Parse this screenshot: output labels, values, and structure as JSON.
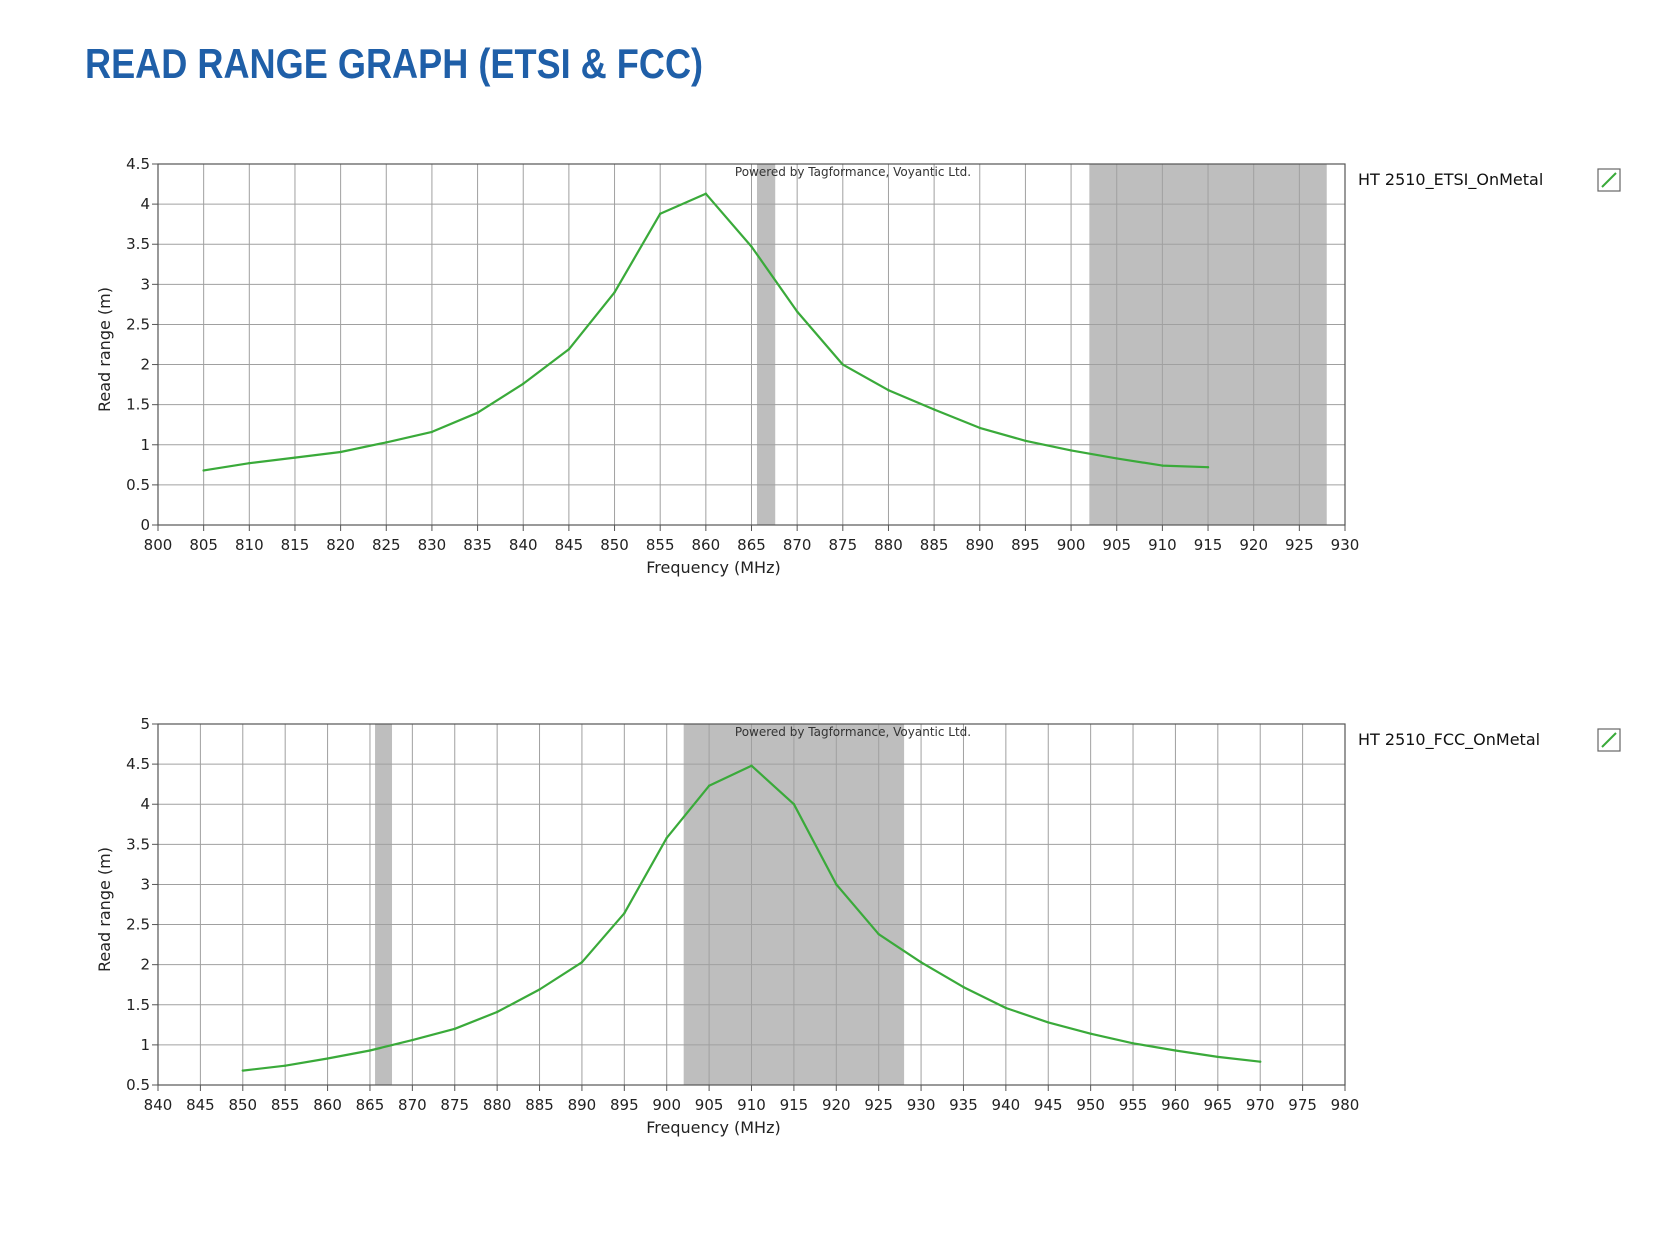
{
  "title": "READ RANGE GRAPH (ETSI & FCC)",
  "colors": {
    "title": "#1f5fa8",
    "series": "#3aaa3a",
    "band": "#bebebe",
    "grid": "#a0a0a0",
    "axis": "#555555"
  },
  "chart_data": [
    {
      "type": "line",
      "watermark": "Powered by Tagformance, Voyantic Ltd.",
      "xlabel": "Frequency (MHz)",
      "ylabel": "Read range (m)",
      "xlim": [
        800,
        930
      ],
      "ylim": [
        0,
        4.5
      ],
      "x_ticks": [
        800,
        805,
        810,
        815,
        820,
        825,
        830,
        835,
        840,
        845,
        850,
        855,
        860,
        865,
        870,
        875,
        880,
        885,
        890,
        895,
        900,
        905,
        910,
        915,
        920,
        925,
        930
      ],
      "y_ticks": [
        0,
        0.5,
        1,
        1.5,
        2,
        2.5,
        3,
        3.5,
        4,
        4.5
      ],
      "grid": true,
      "legend_position": "right",
      "shaded_bands": [
        [
          865.6,
          867.6
        ],
        [
          902,
          928
        ]
      ],
      "series": [
        {
          "name": "HT 2510_ETSI_OnMetal",
          "x": [
            805,
            810,
            815,
            820,
            825,
            830,
            835,
            840,
            845,
            850,
            855,
            860,
            865,
            870,
            875,
            880,
            885,
            890,
            895,
            900,
            905,
            910,
            915
          ],
          "y": [
            0.68,
            0.77,
            0.84,
            0.91,
            1.03,
            1.16,
            1.4,
            1.76,
            2.19,
            2.9,
            3.88,
            4.13,
            3.47,
            2.66,
            2.0,
            1.68,
            1.44,
            1.21,
            1.05,
            0.93,
            0.83,
            0.74,
            0.72
          ]
        }
      ]
    },
    {
      "type": "line",
      "watermark": "Powered by Tagformance, Voyantic Ltd.",
      "xlabel": "Frequency (MHz)",
      "ylabel": "Read range (m)",
      "xlim": [
        840,
        980
      ],
      "ylim": [
        0.5,
        5
      ],
      "x_ticks": [
        840,
        845,
        850,
        855,
        860,
        865,
        870,
        875,
        880,
        885,
        890,
        895,
        900,
        905,
        910,
        915,
        920,
        925,
        930,
        935,
        940,
        945,
        950,
        955,
        960,
        965,
        970,
        975,
        980
      ],
      "y_ticks": [
        0.5,
        1,
        1.5,
        2,
        2.5,
        3,
        3.5,
        4,
        4.5,
        5
      ],
      "grid": true,
      "legend_position": "right",
      "shaded_bands": [
        [
          865.6,
          867.6
        ],
        [
          902,
          928
        ]
      ],
      "series": [
        {
          "name": "HT 2510_FCC_OnMetal",
          "x": [
            850,
            855,
            860,
            865,
            870,
            875,
            880,
            885,
            890,
            895,
            900,
            905,
            910,
            915,
            920,
            925,
            930,
            935,
            940,
            945,
            950,
            955,
            960,
            965,
            970
          ],
          "y": [
            0.68,
            0.74,
            0.83,
            0.93,
            1.06,
            1.2,
            1.41,
            1.69,
            2.03,
            2.64,
            3.58,
            4.23,
            4.48,
            4.0,
            3.0,
            2.38,
            2.03,
            1.72,
            1.46,
            1.28,
            1.14,
            1.02,
            0.93,
            0.85,
            0.79
          ]
        }
      ]
    }
  ]
}
